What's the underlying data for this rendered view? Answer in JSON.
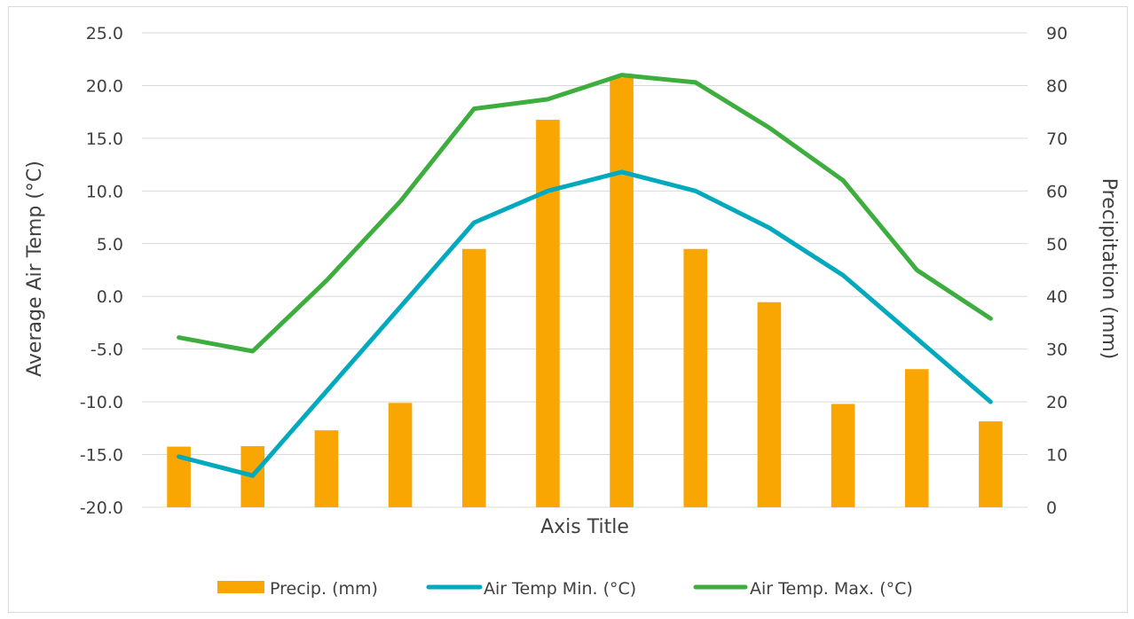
{
  "chart_data": {
    "type": "bar+line",
    "categories": [
      "",
      "",
      "",
      "",
      "",
      "",
      "",
      "",
      "",
      "",
      "",
      ""
    ],
    "xlabel": "Axis Title",
    "ylabel_left": "Average Air Temp (°C)",
    "ylabel_right": "Precipitation (mm)",
    "ylim_left": [
      -20,
      25
    ],
    "ylim_right": [
      0,
      90
    ],
    "yticks_left": [
      "25.0",
      "20.0",
      "15.0",
      "10.0",
      "5.0",
      "0.0",
      "-5.0",
      "-10.0",
      "-15.0",
      "-20.0"
    ],
    "yticks_right": [
      "90",
      "80",
      "70",
      "60",
      "50",
      "40",
      "30",
      "20",
      "10",
      "0"
    ],
    "grid": true,
    "legend_position": "bottom",
    "series": [
      {
        "name": "Precip. (mm)",
        "type": "bar",
        "axis": "right",
        "color": "#F9A602",
        "values": [
          11.5,
          11.6,
          14.6,
          19.8,
          49.0,
          73.5,
          81.5,
          49.0,
          38.9,
          19.6,
          26.2,
          16.3
        ]
      },
      {
        "name": "Air Temp Min. (°C)",
        "type": "line",
        "axis": "left",
        "color": "#00A9BE",
        "values": [
          -15.2,
          -17.0,
          -9.0,
          -1.0,
          7.0,
          10.0,
          11.8,
          10.0,
          6.5,
          2.0,
          -4.0,
          -10.0
        ]
      },
      {
        "name": "Air Temp. Max. (°C)",
        "type": "line",
        "axis": "left",
        "color": "#3DAE3D",
        "values": [
          -3.9,
          -5.2,
          1.5,
          9.0,
          17.8,
          18.7,
          21.0,
          20.3,
          16.0,
          11.0,
          2.5,
          -2.1
        ]
      }
    ]
  }
}
